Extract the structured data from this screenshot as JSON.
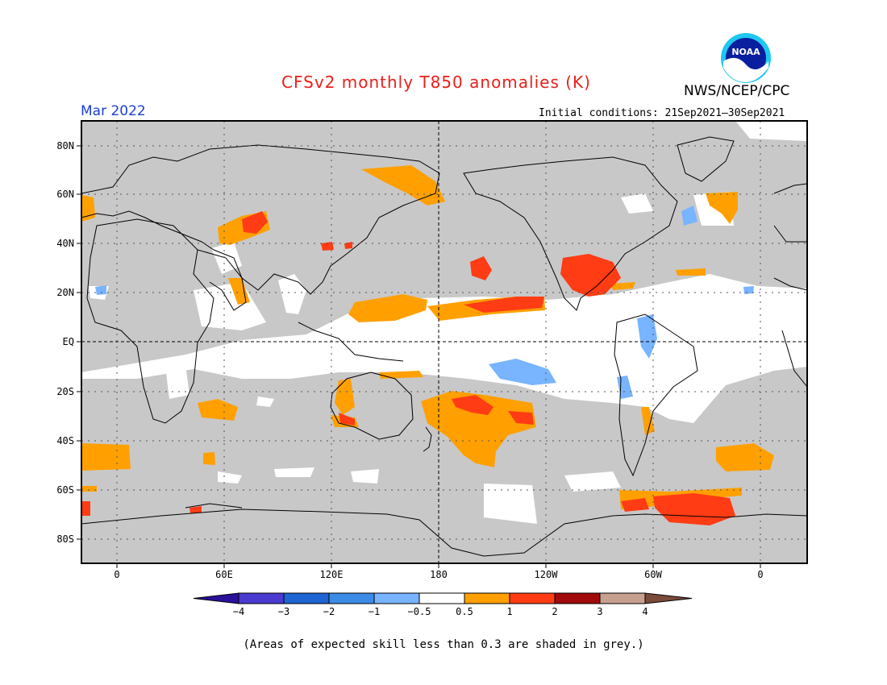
{
  "header": {
    "title": "CFSv2 monthly T850 anomalies (K)",
    "agency": "NWS/NCEP/CPC",
    "month": "Mar 2022",
    "initial_conditions": "Initial conditions: 21Sep2021–30Sep2021",
    "logo_icon": "noaa-logo-icon",
    "logo_text": "NOAA"
  },
  "map": {
    "lat_labels": [
      "80N",
      "60N",
      "40N",
      "20N",
      "EQ",
      "20S",
      "40S",
      "60S",
      "80S"
    ],
    "lon_labels": [
      "0",
      "60E",
      "120E",
      "180",
      "120W",
      "60W",
      "0"
    ],
    "colors": {
      "low_skill_grey": "#c8c8c8",
      "neutral": "#ffffff",
      "warm_1": "#ffa000",
      "warm_2": "#ff3c14",
      "cool_1": "#78b4ff"
    }
  },
  "colorbar": {
    "labels": [
      "−4",
      "−3",
      "−2",
      "−1",
      "−0.5",
      "0.5",
      "1",
      "2",
      "3",
      "4"
    ],
    "colors": [
      "#2a109a",
      "#4a3ad0",
      "#1e64d2",
      "#3c8ce6",
      "#78b4ff",
      "#ffffff",
      "#ffa000",
      "#ff3c14",
      "#a00a0a",
      "#c8a090",
      "#7a4a3a"
    ]
  },
  "footnote": "(Areas of expected skill less than 0.3 are shaded in grey.)"
}
